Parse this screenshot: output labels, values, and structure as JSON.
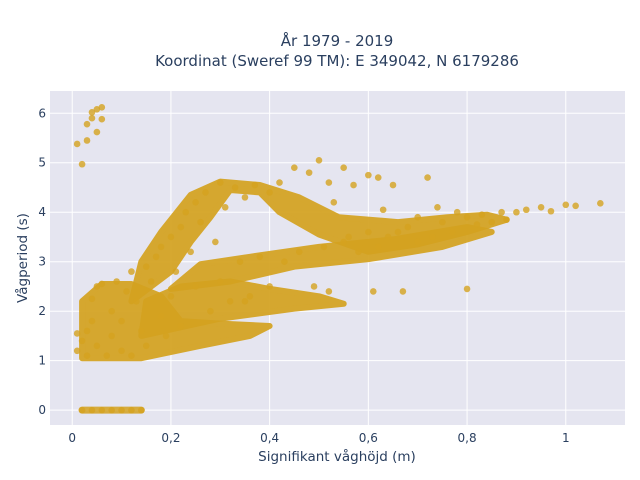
{
  "chart_data": {
    "type": "scatter",
    "title": "År 1979 - 2019",
    "subtitle": "Koordinat (Sweref 99 TM): E 349042, N 6179286",
    "xlabel": "Signifikant våghöjd (m)",
    "ylabel": "Vågperiod (s)",
    "xlim": [
      -0.045,
      1.12
    ],
    "ylim": [
      -0.3,
      6.45
    ],
    "x_ticks": [
      0,
      0.2,
      0.4,
      0.6,
      0.8,
      1
    ],
    "x_tick_labels": [
      "0",
      "0,2",
      "0,4",
      "0,6",
      "0,8",
      "1"
    ],
    "y_ticks": [
      0,
      1,
      2,
      3,
      4,
      5,
      6
    ],
    "y_tick_labels": [
      "0",
      "1",
      "2",
      "3",
      "4",
      "5",
      "6"
    ],
    "grid": true,
    "marker_color": "#d4a21f",
    "plot_bg": "#e5e5f0",
    "points": [
      [
        0.02,
        0
      ],
      [
        0.04,
        0
      ],
      [
        0.06,
        0
      ],
      [
        0.08,
        0
      ],
      [
        0.1,
        0
      ],
      [
        0.12,
        0
      ],
      [
        0.14,
        0
      ],
      [
        0.01,
        5.38
      ],
      [
        0.02,
        4.97
      ],
      [
        0.03,
        5.45
      ],
      [
        0.03,
        5.78
      ],
      [
        0.04,
        5.9
      ],
      [
        0.04,
        6.02
      ],
      [
        0.05,
        5.62
      ],
      [
        0.05,
        6.08
      ],
      [
        0.06,
        6.12
      ],
      [
        0.06,
        5.88
      ],
      [
        0.01,
        1.2
      ],
      [
        0.01,
        1.55
      ],
      [
        0.02,
        1.4
      ],
      [
        0.03,
        1.1
      ],
      [
        0.03,
        1.6
      ],
      [
        0.04,
        1.8
      ],
      [
        0.04,
        2.25
      ],
      [
        0.05,
        1.3
      ],
      [
        0.05,
        2.5
      ],
      [
        0.06,
        2.55
      ],
      [
        0.07,
        1.1
      ],
      [
        0.08,
        1.5
      ],
      [
        0.08,
        2.0
      ],
      [
        0.09,
        2.6
      ],
      [
        0.1,
        1.2
      ],
      [
        0.1,
        1.8
      ],
      [
        0.11,
        2.4
      ],
      [
        0.12,
        1.1
      ],
      [
        0.12,
        2.8
      ],
      [
        0.13,
        2.2
      ],
      [
        0.14,
        1.6
      ],
      [
        0.15,
        2.9
      ],
      [
        0.15,
        1.3
      ],
      [
        0.16,
        2.6
      ],
      [
        0.17,
        3.1
      ],
      [
        0.18,
        1.9
      ],
      [
        0.18,
        3.3
      ],
      [
        0.19,
        1.5
      ],
      [
        0.2,
        3.5
      ],
      [
        0.2,
        2.3
      ],
      [
        0.21,
        2.8
      ],
      [
        0.22,
        3.7
      ],
      [
        0.22,
        1.7
      ],
      [
        0.23,
        4.0
      ],
      [
        0.24,
        3.2
      ],
      [
        0.25,
        4.2
      ],
      [
        0.25,
        2.5
      ],
      [
        0.26,
        3.8
      ],
      [
        0.27,
        4.4
      ],
      [
        0.28,
        2.0
      ],
      [
        0.29,
        3.4
      ],
      [
        0.3,
        4.6
      ],
      [
        0.3,
        2.6
      ],
      [
        0.31,
        4.1
      ],
      [
        0.32,
        2.2
      ],
      [
        0.33,
        4.5
      ],
      [
        0.34,
        3.0
      ],
      [
        0.35,
        4.3
      ],
      [
        0.36,
        2.3
      ],
      [
        0.37,
        4.55
      ],
      [
        0.38,
        3.1
      ],
      [
        0.4,
        4.4
      ],
      [
        0.4,
        2.5
      ],
      [
        0.42,
        4.6
      ],
      [
        0.43,
        3.0
      ],
      [
        0.45,
        4.9
      ],
      [
        0.46,
        3.2
      ],
      [
        0.48,
        4.8
      ],
      [
        0.49,
        2.5
      ],
      [
        0.5,
        5.05
      ],
      [
        0.51,
        3.3
      ],
      [
        0.52,
        4.6
      ],
      [
        0.53,
        4.2
      ],
      [
        0.55,
        3.4
      ],
      [
        0.55,
        4.9
      ],
      [
        0.56,
        3.5
      ],
      [
        0.57,
        4.55
      ],
      [
        0.58,
        3.2
      ],
      [
        0.6,
        3.6
      ],
      [
        0.6,
        4.75
      ],
      [
        0.62,
        3.3
      ],
      [
        0.62,
        4.7
      ],
      [
        0.63,
        4.05
      ],
      [
        0.64,
        3.5
      ],
      [
        0.65,
        4.55
      ],
      [
        0.66,
        3.6
      ],
      [
        0.67,
        2.4
      ],
      [
        0.68,
        3.7
      ],
      [
        0.7,
        3.9
      ],
      [
        0.7,
        3.4
      ],
      [
        0.72,
        4.7
      ],
      [
        0.73,
        3.5
      ],
      [
        0.74,
        4.1
      ],
      [
        0.75,
        3.8
      ],
      [
        0.77,
        3.6
      ],
      [
        0.78,
        4.0
      ],
      [
        0.8,
        3.9
      ],
      [
        0.82,
        3.75
      ],
      [
        0.83,
        3.95
      ],
      [
        0.85,
        3.8
      ],
      [
        0.87,
        4.0
      ],
      [
        0.88,
        3.85
      ],
      [
        0.9,
        4.0
      ],
      [
        0.92,
        4.05
      ],
      [
        0.95,
        4.1
      ],
      [
        0.97,
        4.02
      ],
      [
        1.0,
        4.15
      ],
      [
        1.02,
        4.13
      ],
      [
        1.07,
        4.18
      ],
      [
        0.35,
        2.2
      ],
      [
        0.52,
        2.4
      ],
      [
        0.61,
        2.4
      ],
      [
        0.8,
        2.45
      ]
    ]
  }
}
